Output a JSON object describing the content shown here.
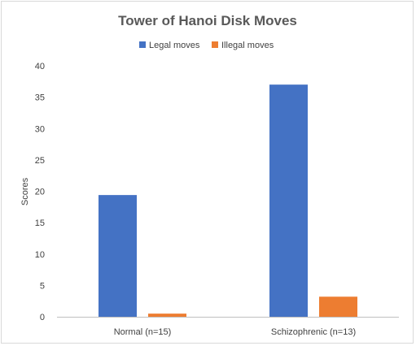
{
  "chart_data": {
    "type": "bar",
    "title": "Tower of Hanoi Disk Moves",
    "xlabel": "",
    "ylabel": "Scores",
    "ylim": [
      0,
      40
    ],
    "yticks": [
      0,
      5,
      10,
      15,
      20,
      25,
      30,
      35,
      40
    ],
    "grid": false,
    "legend_position": "top",
    "categories": [
      "Normal (n=15)",
      "Schizophrenic (n=13)"
    ],
    "series": [
      {
        "name": "Legal moves",
        "color": "#4472c4",
        "values": [
          19.4,
          37.0
        ]
      },
      {
        "name": "Illegal moves",
        "color": "#ed7d31",
        "values": [
          0.5,
          3.2
        ]
      }
    ]
  }
}
